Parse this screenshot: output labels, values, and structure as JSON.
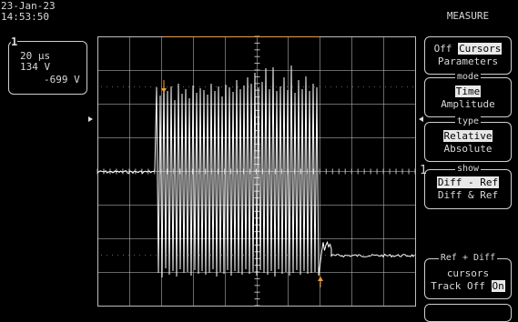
{
  "status": {
    "date": "23-Jan-23",
    "time": "14:53:50"
  },
  "channel": {
    "number": "1",
    "timebase": "20 µs",
    "cursor_ref": "134 V",
    "cursor_diff": "-699 V"
  },
  "trace_label": "1",
  "menu": {
    "title": "MEASURE",
    "measure": {
      "off": "Off",
      "cursors": "Cursors",
      "parameters": "Parameters"
    },
    "mode": {
      "legend": "mode",
      "time": "Time",
      "amplitude": "Amplitude"
    },
    "type": {
      "legend": "type",
      "relative": "Relative",
      "absolute": "Absolute"
    },
    "show": {
      "legend": "show",
      "diff_minus_ref": "Diff - Ref",
      "diff_and_ref": "Diff & Ref"
    },
    "cursors": {
      "legend": "Ref + Diff",
      "label": "cursors",
      "track": "Track",
      "off": "Off",
      "on": "On"
    }
  },
  "colors": {
    "trace": "#ffffff",
    "grid": "#bdbdbd",
    "cursor": "#ff9a2a",
    "background": "#000000"
  }
}
